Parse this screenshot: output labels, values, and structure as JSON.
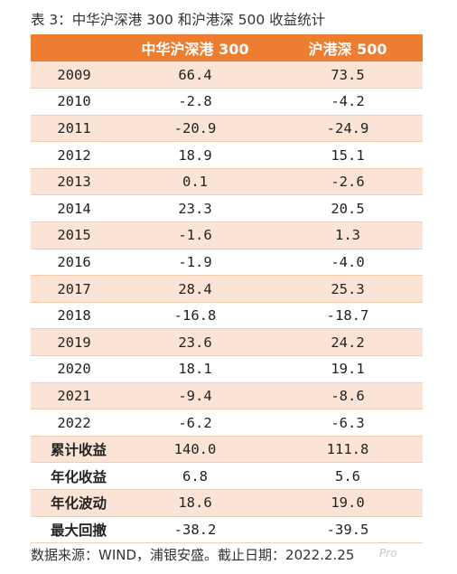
{
  "caption": "表 3：中华沪深港 300 和沪港深 500 收益统计",
  "headers": [
    "",
    "中华沪深港 300",
    "沪港深 500"
  ],
  "rows": [
    {
      "label": "2009",
      "a": "66.4",
      "b": "73.5"
    },
    {
      "label": "2010",
      "a": "-2.8",
      "b": "-4.2"
    },
    {
      "label": "2011",
      "a": "-20.9",
      "b": "-24.9"
    },
    {
      "label": "2012",
      "a": "18.9",
      "b": "15.1"
    },
    {
      "label": "2013",
      "a": "0.1",
      "b": "-2.6"
    },
    {
      "label": "2014",
      "a": "23.3",
      "b": "20.5"
    },
    {
      "label": "2015",
      "a": "-1.6",
      "b": "1.3"
    },
    {
      "label": "2016",
      "a": "-1.9",
      "b": "-4.0"
    },
    {
      "label": "2017",
      "a": "28.4",
      "b": "25.3"
    },
    {
      "label": "2018",
      "a": "-16.8",
      "b": "-18.7"
    },
    {
      "label": "2019",
      "a": "23.6",
      "b": "24.2"
    },
    {
      "label": "2020",
      "a": "18.1",
      "b": "19.1"
    },
    {
      "label": "2021",
      "a": "-9.4",
      "b": "-8.6"
    },
    {
      "label": "2022",
      "a": "-6.2",
      "b": "-6.3"
    },
    {
      "label": "累计收益",
      "a": "140.0",
      "b": "111.8"
    },
    {
      "label": "年化收益",
      "a": "6.8",
      "b": "5.6"
    },
    {
      "label": "年化波动",
      "a": "18.6",
      "b": "19.0"
    },
    {
      "label": "最大回撤",
      "a": "-38.2",
      "b": "-39.5"
    }
  ],
  "source": "数据来源：WIND，浦银安盛。截止日期：2022.2.25",
  "watermark": "Pro",
  "colors": {
    "header_bg": "#ed7d31",
    "band": "#fbe4d5"
  }
}
